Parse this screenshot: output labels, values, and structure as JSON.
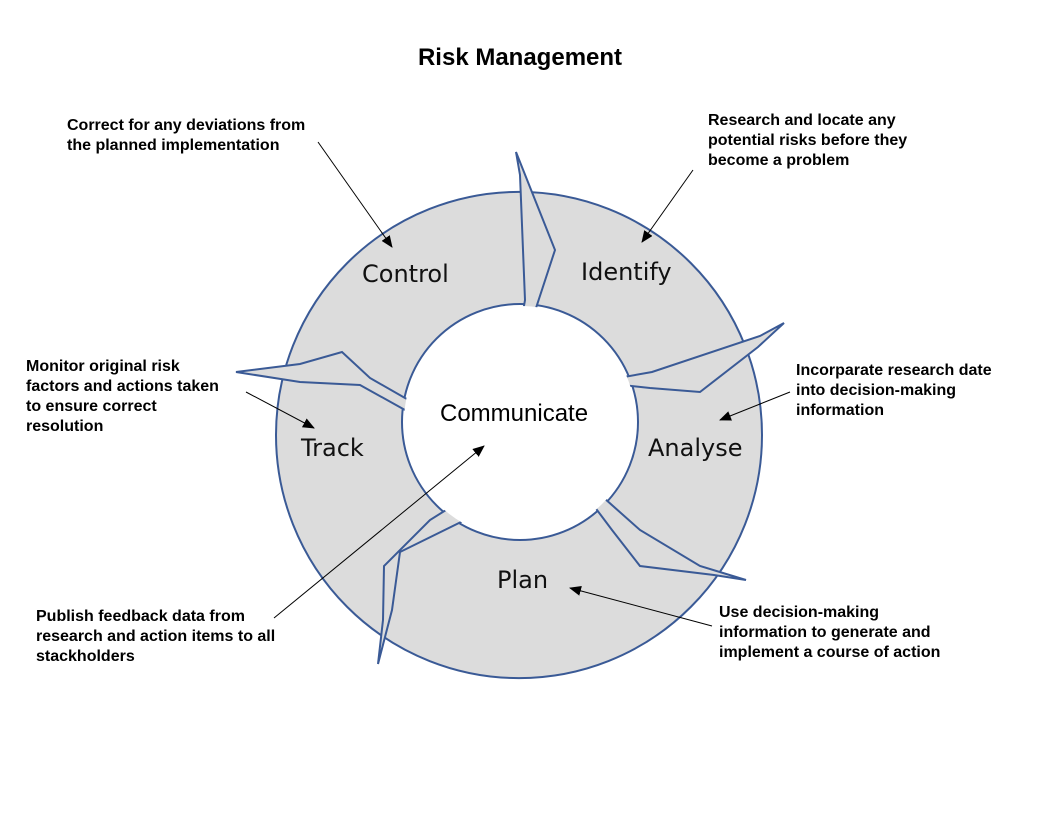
{
  "title": "Risk Management",
  "center": "Communicate",
  "stages": {
    "control": "Control",
    "identify": "Identify",
    "analyse": "Analyse",
    "plan": "Plan",
    "track": "Track"
  },
  "notes": {
    "control": [
      "Correct for any deviations from",
      "the planned implementation"
    ],
    "identify": [
      "Research and locate any",
      "potential risks before they",
      "become a problem"
    ],
    "analyse": [
      "Incorparate research date",
      "into decision-making",
      "information"
    ],
    "plan": [
      "Use decision-making",
      "information to generate and",
      "implement a course of action"
    ],
    "track": [
      "Monitor original risk",
      "factors and actions taken",
      "to ensure correct",
      "resolution"
    ],
    "communicate": [
      "Publish feedback data from",
      "research and action items to all",
      "stackholders"
    ]
  },
  "colors": {
    "ring_fill": "#dcdcdc",
    "ring_stroke": "#3a5a96"
  }
}
